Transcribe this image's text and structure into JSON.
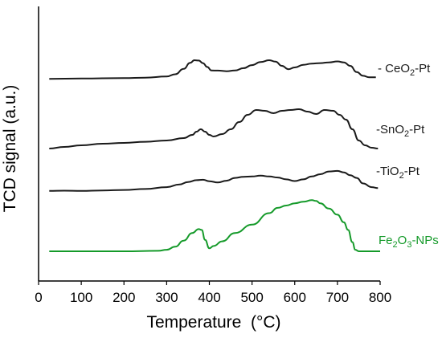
{
  "chart_data": {
    "type": "line",
    "xlabel": "Temperature  (°C)",
    "ylabel": "TCD signal (a.u.)",
    "xlim": [
      0,
      800
    ],
    "xticks": [
      0,
      100,
      200,
      300,
      400,
      500,
      600,
      700,
      800
    ],
    "y_axis_ticks": "none",
    "grid": false,
    "legend": "none (labels at right end of each curve)",
    "y_units": "arbitrary (a.u.), curves vertically offset",
    "colors": {
      "black_series": "#1a1a1a",
      "green_series": "#159a2a"
    },
    "series": [
      {
        "name": "- CeO2-Pt",
        "color": "#1a1a1a",
        "x": [
          25,
          100,
          200,
          250,
          300,
          320,
          340,
          355,
          365,
          375,
          385,
          395,
          405,
          420,
          440,
          460,
          480,
          500,
          520,
          540,
          555,
          570,
          585,
          600,
          620,
          640,
          660,
          680,
          700,
          715,
          730,
          745,
          760,
          775,
          790
        ],
        "y": [
          2.0,
          2.2,
          2.5,
          2.8,
          3.5,
          5.0,
          8.5,
          12.5,
          14.2,
          14.0,
          12.3,
          9.8,
          7.5,
          7.4,
          7.0,
          7.5,
          9.0,
          11.0,
          13.0,
          14.2,
          13.3,
          10.5,
          8.3,
          9.5,
          11.2,
          12.0,
          12.3,
          12.8,
          13.4,
          12.8,
          10.5,
          6.5,
          4.0,
          3.0,
          3.0
        ]
      },
      {
        "name": "-SnO2-Pt",
        "color": "#1a1a1a",
        "x": [
          25,
          60,
          100,
          150,
          200,
          250,
          300,
          340,
          360,
          370,
          380,
          390,
          400,
          410,
          430,
          450,
          470,
          490,
          510,
          530,
          550,
          570,
          590,
          610,
          630,
          650,
          670,
          690,
          705,
          720,
          735,
          750,
          765,
          780,
          795
        ],
        "y": [
          2.0,
          3.0,
          4.0,
          5.0,
          5.5,
          6.2,
          7.0,
          8.5,
          10.5,
          12.5,
          14.0,
          12.5,
          10.5,
          9.5,
          11.0,
          14.0,
          18.5,
          23.0,
          26.0,
          25.5,
          24.0,
          25.5,
          26.0,
          26.5,
          25.0,
          23.5,
          26.0,
          25.5,
          23.0,
          20.0,
          14.0,
          7.0,
          4.0,
          2.5,
          2.0
        ]
      },
      {
        "name": "-TiO2-Pt",
        "color": "#1a1a1a",
        "x": [
          25,
          60,
          100,
          150,
          200,
          250,
          300,
          330,
          350,
          370,
          385,
          400,
          420,
          440,
          460,
          480,
          500,
          520,
          540,
          560,
          580,
          600,
          620,
          640,
          660,
          680,
          700,
          715,
          730,
          745,
          760,
          780,
          795
        ],
        "y": [
          1.0,
          1.1,
          1.0,
          1.2,
          1.5,
          2.0,
          3.0,
          4.5,
          5.8,
          6.8,
          7.0,
          6.2,
          5.5,
          6.5,
          8.0,
          8.6,
          8.8,
          9.2,
          8.8,
          8.2,
          7.2,
          6.3,
          7.2,
          8.8,
          10.0,
          11.5,
          11.8,
          11.0,
          9.5,
          8.0,
          5.0,
          3.0,
          2.5
        ]
      },
      {
        "name": "Fe2O3-NPs",
        "color": "#159a2a",
        "x": [
          25,
          100,
          200,
          280,
          300,
          320,
          340,
          360,
          375,
          382,
          390,
          400,
          410,
          430,
          460,
          500,
          540,
          560,
          580,
          600,
          620,
          640,
          650,
          660,
          680,
          700,
          715,
          725,
          735,
          742,
          750,
          800
        ],
        "y": [
          0,
          0,
          0,
          0.3,
          1.0,
          3.0,
          7.0,
          12.0,
          14.5,
          14.0,
          7.5,
          2.0,
          3.5,
          6.5,
          12.0,
          17.5,
          25.0,
          28.5,
          30.0,
          31.5,
          32.5,
          33.5,
          33.0,
          31.5,
          28.0,
          24.0,
          19.0,
          14.0,
          6.0,
          1.0,
          0,
          0
        ]
      }
    ]
  },
  "labels": {
    "ceo2": {
      "prefix": "- CeO",
      "sub": "2",
      "suffix": "-Pt"
    },
    "sno2": {
      "prefix": "-SnO",
      "sub": "2",
      "suffix": "-Pt"
    },
    "tio2": {
      "prefix": "-TiO",
      "sub": "2",
      "suffix": "-Pt"
    },
    "fe2o3": {
      "a": "Fe",
      "sub1": "2",
      "b": "O",
      "sub2": "3",
      "c": "-NPs"
    }
  }
}
